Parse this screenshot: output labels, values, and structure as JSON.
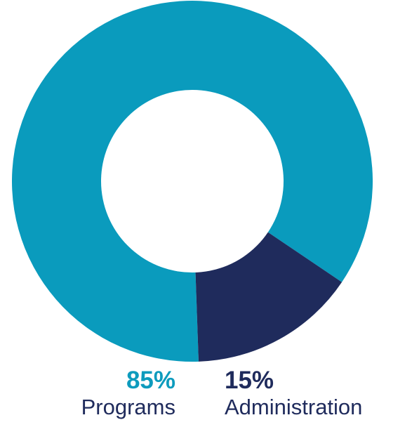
{
  "chart_data": {
    "type": "pie",
    "donut": true,
    "categories": [
      "Programs",
      "Administration"
    ],
    "values": [
      85,
      15
    ],
    "unit": "%",
    "colors": [
      "#0a9bbd",
      "#1f2b5c"
    ],
    "slices": [
      {
        "label": "Programs",
        "value": 85,
        "value_label": "85%",
        "color": "#0a9bbd"
      },
      {
        "label": "Administration",
        "value": 15,
        "value_label": "15%",
        "color": "#1f2b5c"
      }
    ]
  }
}
